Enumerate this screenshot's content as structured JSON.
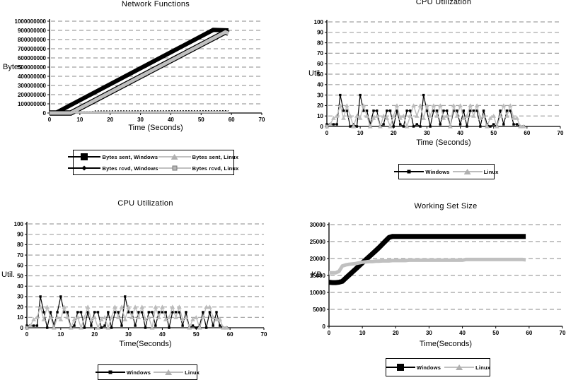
{
  "page": {
    "background": "#ffffff",
    "grid_color": "#a0a0a0",
    "gray_series_color": "#bcbcbc"
  },
  "chart_data": [
    {
      "id": "network-functions",
      "type": "line",
      "title": "Network Functions",
      "xlabel": "Time (Seconds)",
      "ylabel": "Bytes",
      "xlim": [
        0,
        70
      ],
      "ylim": [
        0,
        1000000000
      ],
      "x_ticks": [
        0,
        10,
        20,
        30,
        40,
        50,
        60,
        70
      ],
      "y_ticks": [
        0,
        100000000,
        200000000,
        300000000,
        400000000,
        500000000,
        600000000,
        700000000,
        800000000,
        900000000,
        1000000000
      ],
      "grid": true,
      "legend_position": "bottom",
      "series": [
        {
          "name": "Bytes sent, Windows",
          "color": "#000000",
          "stroke_width": 6,
          "marker": "large-black-square",
          "x": [
            0,
            2,
            54,
            59
          ],
          "y": [
            0,
            0,
            905000000,
            900000000
          ]
        },
        {
          "name": "Bytes sent, Linux",
          "color": "#c0c0c0",
          "outline": "#000000",
          "stroke_width": 5,
          "marker": "gray-triangle",
          "x": [
            0,
            7,
            58,
            59
          ],
          "y": [
            0,
            0,
            882000000,
            868000000
          ]
        },
        {
          "name": "Bytes rcvd, Windows",
          "color": "#000000",
          "stroke_width": 1.5,
          "dash": "2,2",
          "marker": "small-black-diamond",
          "x": [
            0,
            14,
            15,
            59
          ],
          "y": [
            15000000,
            15000000,
            22000000,
            25000000
          ]
        },
        {
          "name": "Bytes rcvd, Linux",
          "color": "#c0c0c0",
          "stroke_width": 3,
          "marker": "small-gray-square",
          "x": [
            0,
            59
          ],
          "y": [
            8000000,
            11000000
          ]
        }
      ]
    },
    {
      "id": "cpu-utilization-top",
      "type": "line",
      "title": "CPU Utilization",
      "xlabel": "Time (Seconds)",
      "ylabel": "Util.",
      "xlim": [
        0,
        70
      ],
      "ylim": [
        0,
        100
      ],
      "x_ticks": [
        0,
        10,
        20,
        30,
        40,
        50,
        60,
        70
      ],
      "y_ticks": [
        0,
        10,
        20,
        30,
        40,
        50,
        60,
        70,
        80,
        90,
        100
      ],
      "grid": true,
      "legend_position": "bottom",
      "series": [
        {
          "name": "Windows",
          "color": "#000000",
          "stroke_width": 1.2,
          "marker": "small-black-square",
          "plot_marker": "square",
          "values": [
            2,
            2,
            2,
            2,
            30,
            15,
            15,
            0,
            2,
            0,
            30,
            15,
            15,
            2,
            15,
            15,
            0,
            2,
            15,
            15,
            0,
            15,
            2,
            0,
            15,
            15,
            0,
            2,
            0,
            30,
            15,
            0,
            15,
            15,
            2,
            15,
            15,
            0,
            15,
            15,
            2,
            15,
            0,
            15,
            15,
            15,
            0,
            15,
            2,
            0,
            2,
            0,
            15,
            2,
            15,
            15,
            2,
            2,
            0,
            0
          ]
        },
        {
          "name": "Linux",
          "color": "#bcbcbc",
          "stroke_width": 1.4,
          "marker": "gray-triangle",
          "plot_marker": "triangle",
          "values": [
            0,
            2,
            8,
            10,
            20,
            8,
            20,
            10,
            0,
            10,
            8,
            20,
            10,
            0,
            8,
            10,
            0,
            10,
            8,
            0,
            10,
            20,
            8,
            10,
            0,
            10,
            20,
            10,
            20,
            8,
            20,
            10,
            20,
            10,
            20,
            8,
            10,
            0,
            20,
            10,
            20,
            8,
            10,
            20,
            10,
            20,
            8,
            10,
            0,
            8,
            10,
            0,
            10,
            20,
            10,
            20,
            8,
            8,
            0,
            0
          ]
        }
      ]
    },
    {
      "id": "cpu-utilization-bottom",
      "type": "line",
      "title": "CPU Utilization",
      "xlabel": "Time(Seconds)",
      "ylabel": "Util.",
      "xlim": [
        0,
        70
      ],
      "ylim": [
        0,
        100
      ],
      "x_ticks": [
        0,
        10,
        20,
        30,
        40,
        50,
        60,
        70
      ],
      "y_ticks": [
        0,
        10,
        20,
        30,
        40,
        50,
        60,
        70,
        80,
        90,
        100
      ],
      "grid": true,
      "legend_position": "bottom",
      "series": [
        {
          "name": "Windows",
          "color": "#000000",
          "stroke_width": 1.2,
          "marker": "small-black-square",
          "plot_marker": "square",
          "values": [
            2,
            2,
            2,
            2,
            30,
            15,
            0,
            15,
            2,
            15,
            30,
            15,
            15,
            0,
            2,
            15,
            15,
            0,
            15,
            2,
            15,
            15,
            0,
            2,
            15,
            0,
            15,
            15,
            2,
            30,
            15,
            15,
            2,
            15,
            15,
            0,
            15,
            15,
            2,
            15,
            15,
            15,
            0,
            15,
            15,
            15,
            2,
            15,
            0,
            2,
            0,
            2,
            15,
            0,
            15,
            2,
            15,
            2,
            0,
            0
          ]
        },
        {
          "name": "Linux",
          "color": "#bcbcbc",
          "stroke_width": 1.4,
          "marker": "gray-triangle",
          "plot_marker": "triangle",
          "values": [
            0,
            2,
            8,
            10,
            20,
            8,
            20,
            10,
            0,
            10,
            8,
            20,
            10,
            0,
            8,
            10,
            0,
            10,
            20,
            8,
            10,
            0,
            8,
            10,
            0,
            10,
            20,
            10,
            20,
            8,
            20,
            10,
            20,
            10,
            20,
            8,
            10,
            0,
            20,
            10,
            20,
            8,
            10,
            20,
            10,
            20,
            8,
            10,
            0,
            8,
            10,
            0,
            10,
            20,
            20,
            10,
            8,
            8,
            0,
            0
          ]
        }
      ]
    },
    {
      "id": "working-set-size",
      "type": "line",
      "title": "Working Set Size",
      "xlabel": "Time(Seconds)",
      "ylabel": "KB",
      "xlim": [
        0,
        70
      ],
      "ylim": [
        0,
        30000
      ],
      "x_ticks": [
        0,
        10,
        20,
        30,
        40,
        50,
        60,
        70
      ],
      "y_ticks": [
        0,
        5000,
        10000,
        15000,
        20000,
        25000,
        30000
      ],
      "grid": true,
      "legend_position": "bottom",
      "series": [
        {
          "name": "Windows",
          "color": "#000000",
          "stroke_width": 7,
          "marker": "large-black-square",
          "values": [
            13000,
            12900,
            12900,
            13000,
            13300,
            14200,
            15100,
            16000,
            16900,
            17800,
            18700,
            19600,
            20500,
            21400,
            22300,
            23200,
            24200,
            25200,
            26200,
            26500,
            26500,
            26500,
            26500,
            26500,
            26500,
            26500,
            26500,
            26500,
            26500,
            26500,
            26500,
            26500,
            26500,
            26500,
            26500,
            26500,
            26500,
            26500,
            26500,
            26500,
            26500,
            26500,
            26500,
            26500,
            26500,
            26500,
            26500,
            26500,
            26500,
            26500,
            26500,
            26500,
            26500,
            26500,
            26500,
            26500,
            26500,
            26500,
            26500,
            26500
          ]
        },
        {
          "name": "Linux",
          "color": "#c0c0c0",
          "stroke_width": 5,
          "marker": "gray-triangle",
          "values": [
            15800,
            15800,
            15800,
            16200,
            17800,
            18100,
            18300,
            18400,
            18500,
            18700,
            18900,
            19000,
            19100,
            19100,
            19200,
            19200,
            19300,
            19300,
            19300,
            19400,
            19400,
            19400,
            19400,
            19400,
            19500,
            19500,
            19500,
            19500,
            19500,
            19500,
            19500,
            19500,
            19500,
            19500,
            19500,
            19500,
            19500,
            19500,
            19500,
            19500,
            19500,
            19700,
            19700,
            19700,
            19700,
            19700,
            19700,
            19700,
            19700,
            19700,
            19700,
            19700,
            19700,
            19700,
            19700,
            19700,
            19700,
            19700,
            19700,
            19600
          ]
        }
      ]
    }
  ]
}
